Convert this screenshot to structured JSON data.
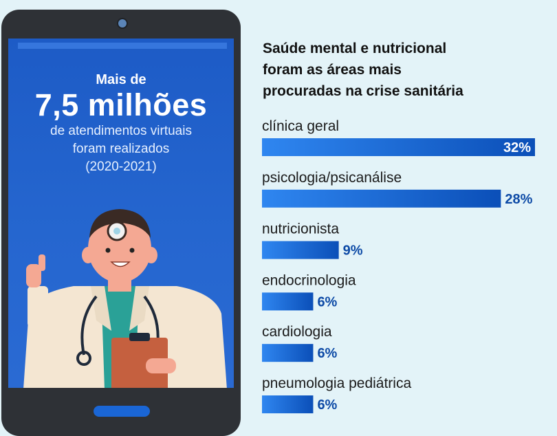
{
  "phone": {
    "headline_pre": "Mais de",
    "headline_big": "7,5 milhões",
    "headline_post_1": "de atendimentos virtuais",
    "headline_post_2": "foram realizados",
    "headline_post_3": "(2020-2021)",
    "illustration": "doctor-icon"
  },
  "colors": {
    "background": "#e3f3f8",
    "bar_dark": "#0b4fb8",
    "bar_light": "#2f86f0",
    "value_text": "#0d4aa6",
    "value_text_inside": "#ffffff"
  },
  "chart_data": {
    "type": "bar",
    "orientation": "horizontal",
    "title": "Saúde mental e nutricional\nforam as áreas mais\nprocuradas na crise sanitária",
    "categories": [
      "clínica geral",
      "psicologia/psicanálise",
      "nutricionista",
      "endocrinologia",
      "cardiologia",
      "pneumologia pediátrica"
    ],
    "values": [
      32,
      28,
      9,
      6,
      6,
      6
    ],
    "value_labels": [
      "32%",
      "28%",
      "9%",
      "6%",
      "6%",
      "6%"
    ],
    "unit": "%",
    "xlim": [
      0,
      32
    ],
    "grid": false,
    "legend": "none"
  }
}
